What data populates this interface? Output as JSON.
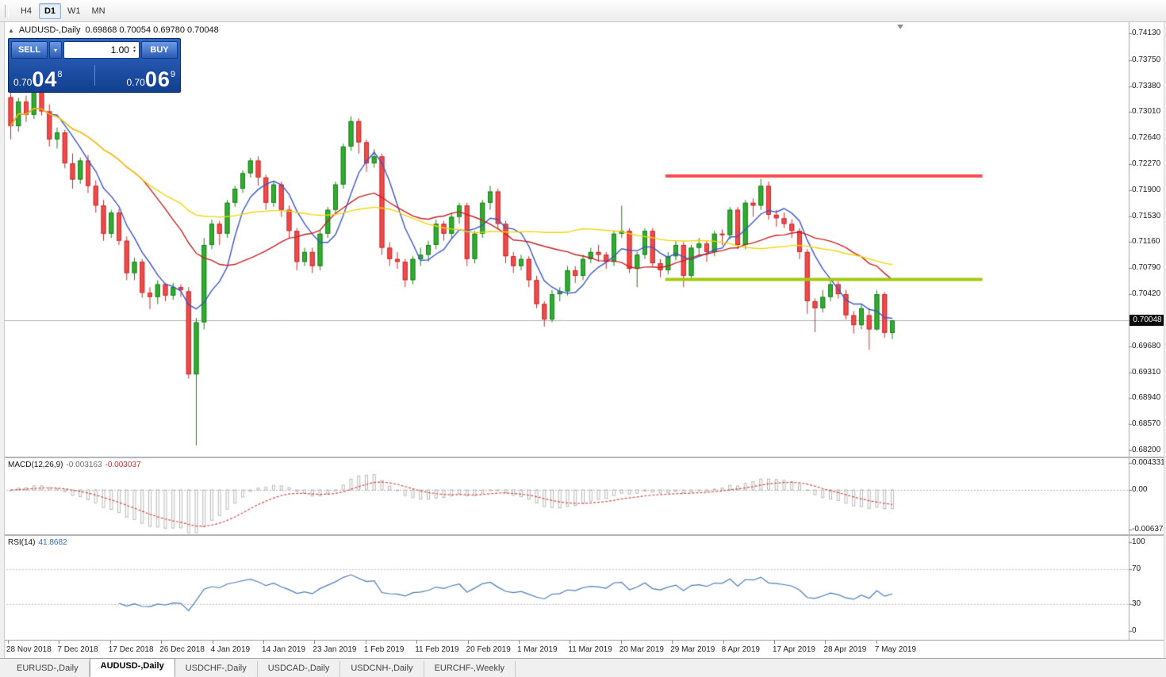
{
  "toolbar": {
    "timeframes": [
      {
        "label": "H4",
        "active": false
      },
      {
        "label": "D1",
        "active": true
      },
      {
        "label": "W1",
        "active": false
      },
      {
        "label": "MN",
        "active": false
      }
    ]
  },
  "chart": {
    "title": "AUDUSD-,Daily",
    "ohlc": "0.69868 0.70054 0.69780 0.70048"
  },
  "trade_panel": {
    "sell_label": "SELL",
    "buy_label": "BUY",
    "volume": "1.00",
    "sell_price": {
      "base": "0.70",
      "big": "04",
      "pip": "8"
    },
    "buy_price": {
      "base": "0.70",
      "big": "06",
      "pip": "9"
    }
  },
  "price_axis": {
    "labels": [
      "0.74130",
      "0.73750",
      "0.73380",
      "0.73010",
      "0.72640",
      "0.72270",
      "0.71900",
      "0.71530",
      "0.71160",
      "0.70790",
      "0.70420",
      "0.69680",
      "0.69310",
      "0.68940",
      "0.68570",
      "0.68200"
    ],
    "current": "0.70048"
  },
  "time_axis": {
    "labels": [
      "28 Nov 2018",
      "7 Dec 2018",
      "17 Dec 2018",
      "26 Dec 2018",
      "4 Jan 2019",
      "14 Jan 2019",
      "23 Jan 2019",
      "1 Feb 2019",
      "11 Feb 2019",
      "20 Feb 2019",
      "1 Mar 2019",
      "11 Mar 2019",
      "20 Mar 2019",
      "29 Mar 2019",
      "8 Apr 2019",
      "17 Apr 2019",
      "28 Apr 2019",
      "7 May 2019"
    ]
  },
  "indicators": {
    "macd": {
      "name": "MACD(12,26,9)",
      "value_main": "-0.003163",
      "value_signal": "-0.003037",
      "axis": [
        "0.004331",
        "0.00",
        "-0.006373"
      ]
    },
    "rsi": {
      "name": "RSI(14)",
      "value": "41.8682",
      "axis": [
        "100",
        "70",
        "30",
        "0"
      ]
    }
  },
  "tabs": [
    {
      "label": "EURUSD-,Daily",
      "active": false
    },
    {
      "label": "AUDUSD-,Daily",
      "active": true
    },
    {
      "label": "USDCHF-,Daily",
      "active": false
    },
    {
      "label": "USDCAD-,Daily",
      "active": false
    },
    {
      "label": "USDCNH-,Daily",
      "active": false
    },
    {
      "label": "EURCHF-,Weekly",
      "active": false
    }
  ],
  "chart_data": {
    "type": "candlestick",
    "symbol": "AUDUSD",
    "timeframe": "D1",
    "ylim": [
      0.682,
      0.7413
    ],
    "current_price": 0.70048,
    "current_ohlc": {
      "open": 0.69868,
      "high": 0.70054,
      "low": 0.6978,
      "close": 0.70048
    },
    "colors": {
      "bull": "#2fae2f",
      "bull_border": "#1e7d1e",
      "bear": "#f04b4b",
      "bear_border": "#c62b2b",
      "current_line": "#b0b0b0"
    },
    "moving_averages": [
      {
        "period": 6,
        "color": "#3a55cc"
      },
      {
        "period": 18,
        "color": "#c82020"
      },
      {
        "period": 50,
        "color": "#f2d60a"
      }
    ],
    "hlines": [
      {
        "name": "resistance",
        "price": 0.721,
        "color": "#fb4b4b",
        "width": 4,
        "from_index": 85,
        "to_index": 126
      },
      {
        "name": "support",
        "price": 0.7063,
        "color": "#a4c80c",
        "width": 4,
        "from_index": 85,
        "to_index": 126
      }
    ],
    "macd": {
      "fast": 12,
      "slow": 26,
      "signal": 9,
      "ylim": [
        -0.006373,
        0.004331
      ],
      "histogram_color": "#b8b8b8",
      "signal_color": "#d24a4a"
    },
    "rsi": {
      "period": 14,
      "levels": [
        70,
        30
      ],
      "color": "#4a7ab5",
      "last": 41.8682
    },
    "candles": [
      [
        0.7322,
        0.7331,
        0.7262,
        0.7281
      ],
      [
        0.7281,
        0.7321,
        0.7273,
        0.7316
      ],
      [
        0.7316,
        0.7324,
        0.7287,
        0.7297
      ],
      [
        0.7297,
        0.7337,
        0.7291,
        0.7331
      ],
      [
        0.7331,
        0.7341,
        0.7296,
        0.7302
      ],
      [
        0.7302,
        0.7312,
        0.7252,
        0.7262
      ],
      [
        0.7262,
        0.7279,
        0.7249,
        0.7272
      ],
      [
        0.7272,
        0.7276,
        0.7221,
        0.7228
      ],
      [
        0.7228,
        0.7242,
        0.7192,
        0.7205
      ],
      [
        0.7205,
        0.7236,
        0.7199,
        0.7232
      ],
      [
        0.7232,
        0.724,
        0.7186,
        0.7196
      ],
      [
        0.7196,
        0.7204,
        0.7158,
        0.7168
      ],
      [
        0.7168,
        0.7176,
        0.7118,
        0.7128
      ],
      [
        0.7128,
        0.7162,
        0.7122,
        0.7158
      ],
      [
        0.7158,
        0.7163,
        0.7112,
        0.7118
      ],
      [
        0.7118,
        0.7124,
        0.7062,
        0.7072
      ],
      [
        0.7072,
        0.7094,
        0.7062,
        0.7088
      ],
      [
        0.7088,
        0.7092,
        0.7037,
        0.7044
      ],
      [
        0.7044,
        0.7052,
        0.7021,
        0.7038
      ],
      [
        0.7038,
        0.7062,
        0.7028,
        0.7056
      ],
      [
        0.7056,
        0.7058,
        0.7032,
        0.704
      ],
      [
        0.704,
        0.7058,
        0.7034,
        0.7052
      ],
      [
        0.7052,
        0.7056,
        0.7038,
        0.7048
      ],
      [
        0.7046,
        0.7052,
        0.6922,
        0.6928
      ],
      [
        0.6928,
        0.7008,
        0.6827,
        0.7002
      ],
      [
        0.7002,
        0.7122,
        0.6992,
        0.7112
      ],
      [
        0.7112,
        0.7148,
        0.7106,
        0.7142
      ],
      [
        0.7142,
        0.7146,
        0.7112,
        0.7128
      ],
      [
        0.7128,
        0.7176,
        0.7122,
        0.7172
      ],
      [
        0.7172,
        0.7196,
        0.7166,
        0.7192
      ],
      [
        0.7192,
        0.7218,
        0.7186,
        0.7214
      ],
      [
        0.7214,
        0.7236,
        0.7208,
        0.7232
      ],
      [
        0.7232,
        0.7238,
        0.7196,
        0.7208
      ],
      [
        0.7208,
        0.7212,
        0.7162,
        0.7172
      ],
      [
        0.7172,
        0.7202,
        0.7166,
        0.7198
      ],
      [
        0.7198,
        0.7202,
        0.7152,
        0.7162
      ],
      [
        0.7162,
        0.7168,
        0.7122,
        0.7132
      ],
      [
        0.7132,
        0.7136,
        0.7076,
        0.7088
      ],
      [
        0.7088,
        0.7108,
        0.7082,
        0.7102
      ],
      [
        0.7102,
        0.7108,
        0.7072,
        0.7082
      ],
      [
        0.7082,
        0.7132,
        0.7076,
        0.7128
      ],
      [
        0.7128,
        0.7166,
        0.7122,
        0.7162
      ],
      [
        0.7162,
        0.7202,
        0.7156,
        0.7198
      ],
      [
        0.7198,
        0.7256,
        0.7192,
        0.7252
      ],
      [
        0.7252,
        0.7295,
        0.7246,
        0.7288
      ],
      [
        0.7288,
        0.7292,
        0.7242,
        0.7258
      ],
      [
        0.7258,
        0.7262,
        0.7216,
        0.7228
      ],
      [
        0.7228,
        0.7248,
        0.7222,
        0.7238
      ],
      [
        0.7238,
        0.7242,
        0.7098,
        0.7108
      ],
      [
        0.7108,
        0.7116,
        0.7082,
        0.7092
      ],
      [
        0.7092,
        0.7102,
        0.7078,
        0.7088
      ],
      [
        0.7088,
        0.7092,
        0.7052,
        0.7062
      ],
      [
        0.7062,
        0.7096,
        0.7056,
        0.7092
      ],
      [
        0.7092,
        0.7108,
        0.7082,
        0.7098
      ],
      [
        0.7098,
        0.7118,
        0.7088,
        0.7112
      ],
      [
        0.7112,
        0.7148,
        0.7106,
        0.7142
      ],
      [
        0.7142,
        0.7146,
        0.7118,
        0.7128
      ],
      [
        0.7128,
        0.7158,
        0.7122,
        0.7152
      ],
      [
        0.7152,
        0.7172,
        0.7142,
        0.7168
      ],
      [
        0.7168,
        0.7172,
        0.7082,
        0.7092
      ],
      [
        0.7092,
        0.7132,
        0.7086,
        0.7128
      ],
      [
        0.7128,
        0.7176,
        0.7122,
        0.7172
      ],
      [
        0.7172,
        0.7196,
        0.7162,
        0.7188
      ],
      [
        0.7188,
        0.7192,
        0.7136,
        0.7142
      ],
      [
        0.7142,
        0.7146,
        0.7086,
        0.7096
      ],
      [
        0.7096,
        0.7102,
        0.7072,
        0.7082
      ],
      [
        0.7082,
        0.7098,
        0.7076,
        0.7092
      ],
      [
        0.7092,
        0.7096,
        0.7052,
        0.7062
      ],
      [
        0.7062,
        0.7068,
        0.7022,
        0.7028
      ],
      [
        0.7028,
        0.7032,
        0.6996,
        0.7006
      ],
      [
        0.7006,
        0.7048,
        0.7002,
        0.7042
      ],
      [
        0.7042,
        0.7052,
        0.7032,
        0.7046
      ],
      [
        0.7046,
        0.7082,
        0.704,
        0.7076
      ],
      [
        0.7076,
        0.7082,
        0.7058,
        0.7068
      ],
      [
        0.7068,
        0.7098,
        0.7062,
        0.7092
      ],
      [
        0.7092,
        0.7108,
        0.7086,
        0.7102
      ],
      [
        0.7102,
        0.7112,
        0.7088,
        0.7098
      ],
      [
        0.7098,
        0.7102,
        0.7078,
        0.7088
      ],
      [
        0.7088,
        0.7132,
        0.7082,
        0.7128
      ],
      [
        0.7128,
        0.7168,
        0.7122,
        0.7132
      ],
      [
        0.7132,
        0.7136,
        0.7072,
        0.7078
      ],
      [
        0.7078,
        0.7102,
        0.7052,
        0.7098
      ],
      [
        0.7098,
        0.7136,
        0.7092,
        0.7132
      ],
      [
        0.7132,
        0.7136,
        0.7082,
        0.7086
      ],
      [
        0.7086,
        0.7092,
        0.7066,
        0.7076
      ],
      [
        0.7076,
        0.7102,
        0.707,
        0.7096
      ],
      [
        0.7096,
        0.7118,
        0.709,
        0.7112
      ],
      [
        0.7112,
        0.7116,
        0.7052,
        0.7068
      ],
      [
        0.7068,
        0.7112,
        0.7062,
        0.7108
      ],
      [
        0.7108,
        0.7122,
        0.7098,
        0.7114
      ],
      [
        0.7114,
        0.7118,
        0.7088,
        0.7102
      ],
      [
        0.7102,
        0.7132,
        0.7096,
        0.7128
      ],
      [
        0.7128,
        0.7134,
        0.7112,
        0.7126
      ],
      [
        0.7126,
        0.7166,
        0.712,
        0.7162
      ],
      [
        0.7162,
        0.7166,
        0.7106,
        0.7112
      ],
      [
        0.7112,
        0.7176,
        0.7106,
        0.7172
      ],
      [
        0.7172,
        0.7178,
        0.7152,
        0.7168
      ],
      [
        0.7168,
        0.7206,
        0.7162,
        0.7196
      ],
      [
        0.7196,
        0.7202,
        0.7148,
        0.7155
      ],
      [
        0.7155,
        0.7162,
        0.7138,
        0.715
      ],
      [
        0.715,
        0.7158,
        0.7136,
        0.7142
      ],
      [
        0.7142,
        0.7148,
        0.7122,
        0.7132
      ],
      [
        0.7132,
        0.7136,
        0.7092,
        0.7102
      ],
      [
        0.7102,
        0.7106,
        0.7014,
        0.7032
      ],
      [
        0.7032,
        0.7036,
        0.6988,
        0.7022
      ],
      [
        0.7022,
        0.7048,
        0.7016,
        0.7038
      ],
      [
        0.7038,
        0.7062,
        0.7032,
        0.7056
      ],
      [
        0.7056,
        0.706,
        0.7036,
        0.7042
      ],
      [
        0.7042,
        0.7048,
        0.7006,
        0.7012
      ],
      [
        0.7012,
        0.7018,
        0.6986,
        0.6998
      ],
      [
        0.6998,
        0.7028,
        0.6992,
        0.7022
      ],
      [
        0.7012,
        0.7022,
        0.6963,
        0.6992
      ],
      [
        0.6992,
        0.7048,
        0.699,
        0.7042
      ],
      [
        0.7042,
        0.7045,
        0.698,
        0.6987
      ],
      [
        0.69868,
        0.70054,
        0.6978,
        0.70048
      ]
    ]
  }
}
